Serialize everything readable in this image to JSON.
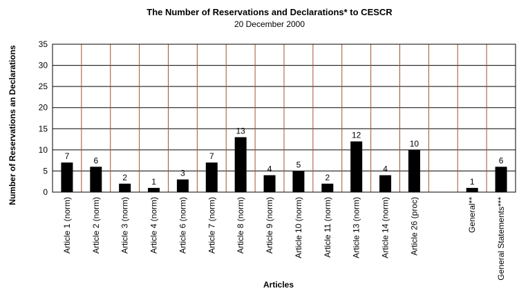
{
  "chart_data": {
    "type": "bar",
    "title": "The Number of Reservations and Declarations* to CESCR",
    "subtitle": "20 December 2000",
    "xlabel": "Articles",
    "ylabel": "Number of Reservations an Declarations",
    "ylim": [
      0,
      35
    ],
    "yticks": [
      0,
      5,
      10,
      15,
      20,
      25,
      30,
      35
    ],
    "grid": true,
    "legend": "none",
    "categories": [
      "Article 1 (norm)",
      "Article 2 (norm)",
      "Article 3 (norm)",
      "Article 4 (norm)",
      "Article 6 (norm)",
      "Article 7 (norm)",
      "Article 8 (norm)",
      "Article 9 (norm)",
      "Article 10 (norm)",
      "Article 11 (norm)",
      "Article 13 (norm)",
      "Article 14 (norm)",
      "Article 26 (proc)",
      "",
      "General**",
      "General Statements***"
    ],
    "values": [
      7,
      6,
      2,
      1,
      3,
      7,
      13,
      4,
      5,
      2,
      12,
      4,
      10,
      null,
      1,
      6
    ],
    "bar_color": "#000000",
    "vertical_grid_color": "#a0522d",
    "horizontal_grid_color": "#000000"
  }
}
